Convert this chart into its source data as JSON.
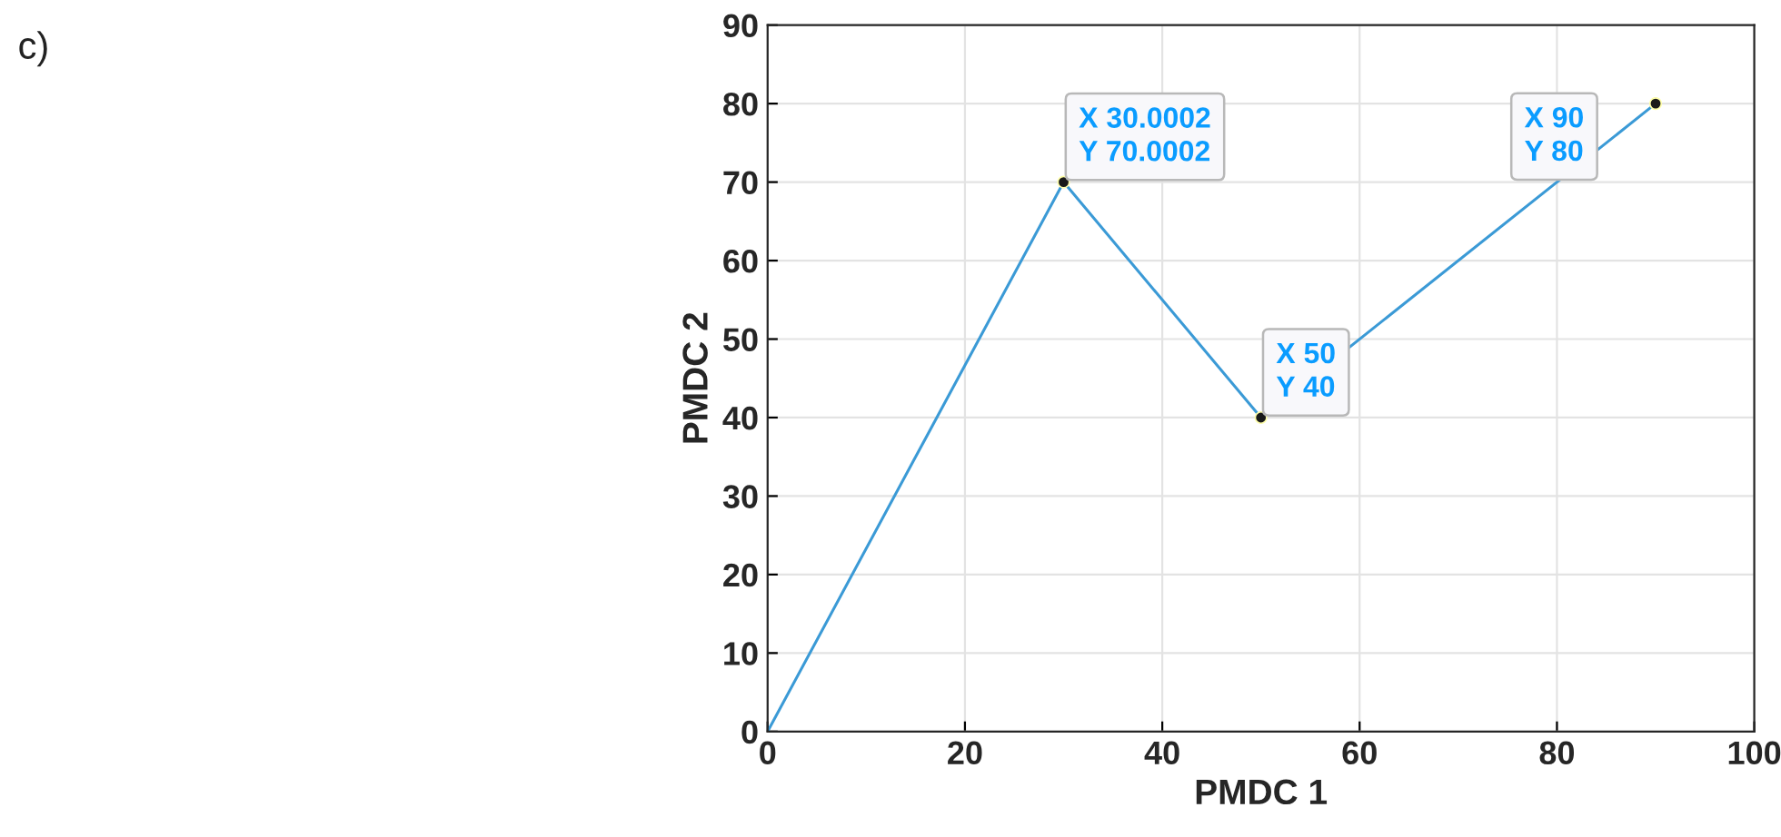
{
  "chart_data": {
    "type": "line",
    "xlabel": "PMDC 1",
    "ylabel": "PMDC 2",
    "x": [
      0,
      30.0002,
      50,
      90
    ],
    "series": [
      {
        "color": "#3b9ad6",
        "values": [
          0,
          70.0002,
          40,
          80
        ]
      }
    ],
    "xlim": [
      0,
      100
    ],
    "xticks": [
      0,
      20,
      40,
      60,
      80,
      100
    ],
    "ylim": [
      0,
      90
    ],
    "yticks": [
      0,
      10,
      20,
      30,
      40,
      50,
      60,
      70,
      80,
      90
    ],
    "grid": true,
    "line_style": "solid",
    "annotations": [
      "c)",
      {
        "text": "X 30.0002\nY 70.0002",
        "x": 30.0002,
        "y": 70.0002
      },
      {
        "text": "X 50\nY 40",
        "x": 50,
        "y": 40
      },
      {
        "text": "X 90\nY 80",
        "x": 90,
        "y": 80
      }
    ]
  }
}
